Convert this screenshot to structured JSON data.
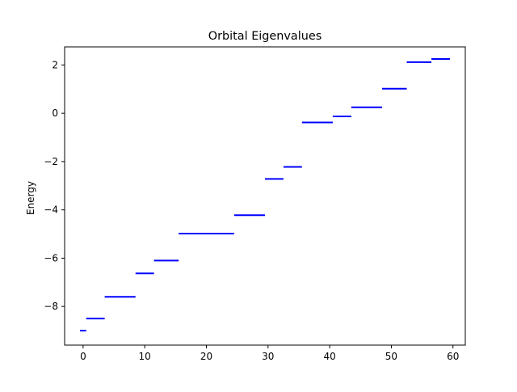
{
  "chart_data": {
    "type": "line",
    "title": "Orbital Eigenvalues",
    "xlabel": "",
    "ylabel": "Energy",
    "xlim": [
      -3,
      62
    ],
    "ylim": [
      -9.6,
      2.75
    ],
    "x_ticks": [
      0,
      10,
      20,
      30,
      40,
      50,
      60
    ],
    "y_ticks": [
      -8,
      -6,
      -4,
      -2,
      0,
      2
    ],
    "grid": false,
    "legend": "none",
    "line_color": "#0000ff",
    "series": [
      {
        "levels": [
          {
            "x_start": -0.5,
            "x_end": 0.5,
            "energy": -9.0
          },
          {
            "x_start": 0.5,
            "x_end": 3.5,
            "energy": -8.5
          },
          {
            "x_start": 3.5,
            "x_end": 8.5,
            "energy": -7.6
          },
          {
            "x_start": 8.5,
            "x_end": 11.5,
            "energy": -6.63
          },
          {
            "x_start": 11.5,
            "x_end": 15.5,
            "energy": -6.1
          },
          {
            "x_start": 15.5,
            "x_end": 24.5,
            "energy": -4.98
          },
          {
            "x_start": 24.5,
            "x_end": 29.5,
            "energy": -4.22
          },
          {
            "x_start": 29.5,
            "x_end": 32.5,
            "energy": -2.72
          },
          {
            "x_start": 32.5,
            "x_end": 35.5,
            "energy": -2.22
          },
          {
            "x_start": 35.5,
            "x_end": 40.5,
            "energy": -0.38
          },
          {
            "x_start": 40.5,
            "x_end": 43.5,
            "energy": -0.13
          },
          {
            "x_start": 43.5,
            "x_end": 48.5,
            "energy": 0.25
          },
          {
            "x_start": 48.5,
            "x_end": 52.5,
            "energy": 1.02
          },
          {
            "x_start": 52.5,
            "x_end": 56.5,
            "energy": 2.12
          },
          {
            "x_start": 56.5,
            "x_end": 59.5,
            "energy": 2.25
          }
        ]
      }
    ]
  }
}
